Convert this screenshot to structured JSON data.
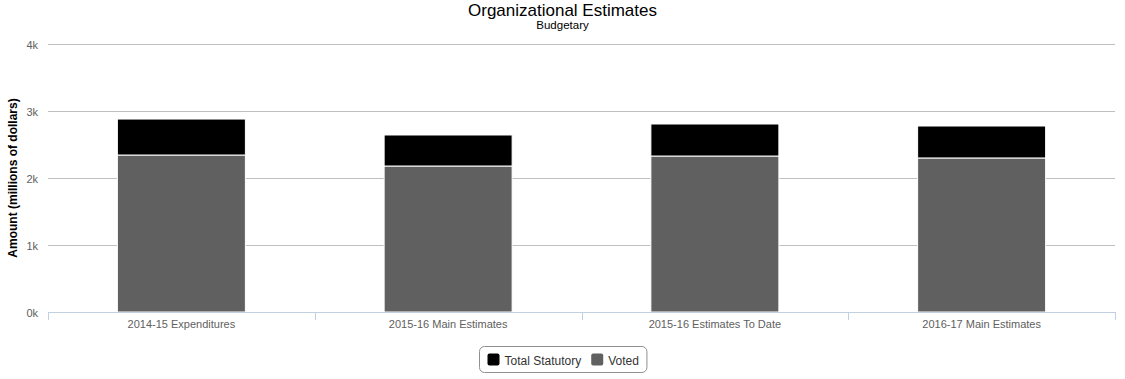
{
  "chart_data": {
    "type": "bar",
    "stacked": true,
    "title": "Organizational Estimates",
    "subtitle": "Budgetary",
    "y_label": "Amount (millions of dollars)",
    "categories": [
      "2014-15 Expenditures",
      "2015-16 Main Estimates",
      "2015-16 Estimates To Date",
      "2016-17 Main Estimates"
    ],
    "series": [
      {
        "name": "Total Statutory",
        "color": "#000000",
        "values": [
          537,
          463,
          478,
          477
        ]
      },
      {
        "name": "Voted",
        "color": "#606060",
        "values": [
          2343,
          2179,
          2328,
          2299
        ]
      }
    ],
    "ylim": [
      0,
      4000
    ],
    "yticks": [
      {
        "value": 0,
        "label": "0k"
      },
      {
        "value": 1000,
        "label": "1k"
      },
      {
        "value": 2000,
        "label": "2k"
      },
      {
        "value": 3000,
        "label": "3k"
      },
      {
        "value": 4000,
        "label": "4k"
      }
    ],
    "grid": true,
    "legend": "bottom"
  }
}
